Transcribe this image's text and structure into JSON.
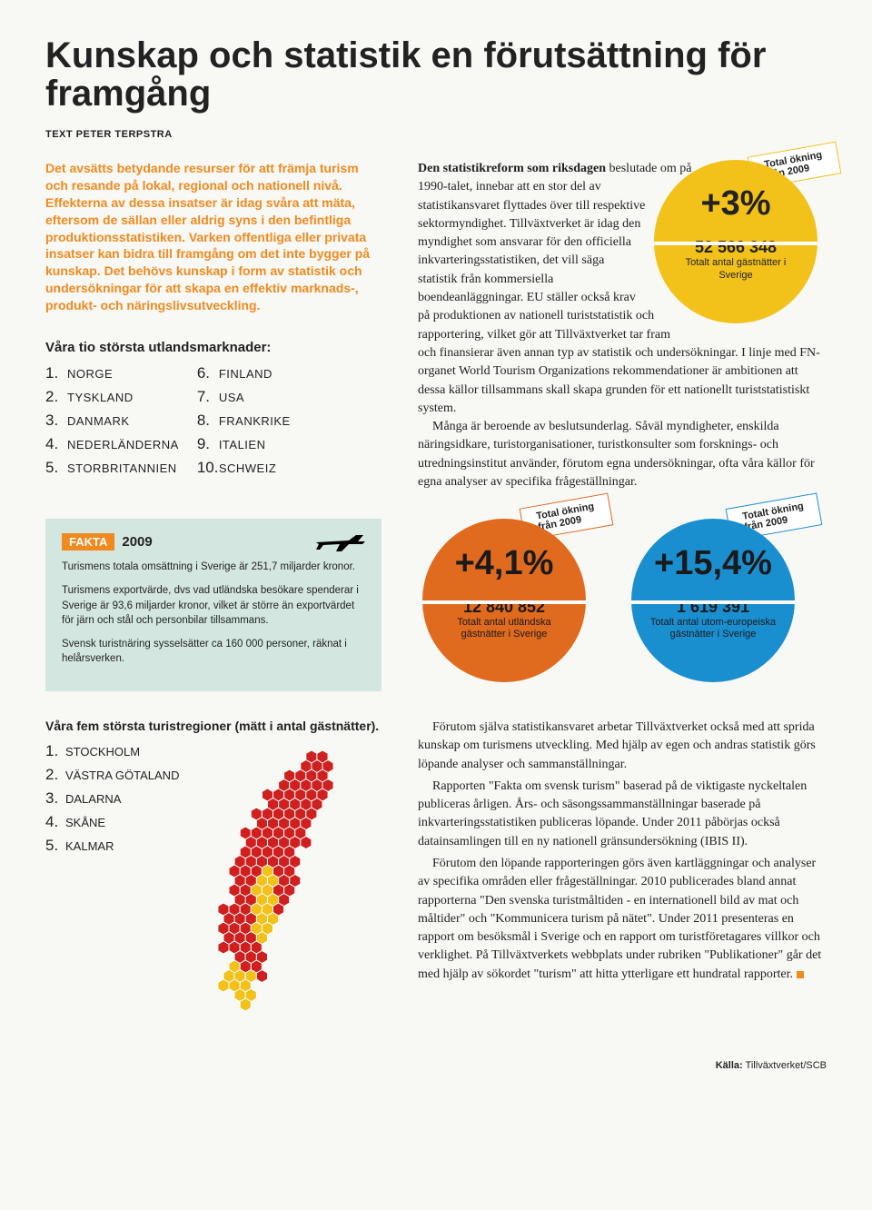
{
  "title": "Kunskap och statistik en förutsättning för framgång",
  "byline": "TEXT PETER TERPSTRA",
  "intro": "Det avsätts betydande resurser för att främja turism och resande på lokal, regional och nationell nivå. Effekterna av dessa insatser är idag svåra att mäta, eftersom de sällan eller aldrig syns i den befintliga produktionsstatistiken. Varken offentliga eller privata insatser kan bidra till framgång om det inte bygger på kunskap. Det behövs kunskap i form av statistik och undersökningar för att skapa en effektiv marknads-, produkt- och näringslivsutveckling.",
  "markets": {
    "title": "Våra tio största utlandsmarknader:",
    "items": [
      "NORGE",
      "TYSKLAND",
      "DANMARK",
      "NEDERLÄNDERNA",
      "STORBRITANNIEN",
      "FINLAND",
      "USA",
      "FRANKRIKE",
      "ITALIEN",
      "SCHWEIZ"
    ]
  },
  "body1_lead": "Den statistikreform som riksdagen",
  "body1": " beslutade om på 1990-talet, innebar att en stor del av statistikansvaret flyttades över till respektive sektormyndighet. Tillväxtverket är idag den myndighet som ansvarar för den officiella inkvarteringsstatistiken, det vill säga statistik från kommersiella boendeanläggningar. EU ställer också krav på produktionen av nationell turiststatistik och rapportering, vilket gör att Tillväxtverket tar fram och finansierar även annan typ av statistik och undersökningar. I linje med FN-organet World Tourism Organizations rekommendationer är ambitionen att dessa källor tillsammans skall skapa grunden för ett nationellt turiststatistiskt system.",
  "body1b": "Många är beroende av beslutsunderlag. Såväl myndigheter, enskilda näringsidkare, turistorganisationer, turistkonsulter som forsknings- och utredningsinstitut använder, förutom egna undersökningar, ofta våra källor för egna analyser av specifika frågeställningar.",
  "tag_line1": "Total ökning",
  "tag_line2": "från 2009",
  "tag_line1b": "Totalt ökning",
  "circles": {
    "yellow": {
      "bg": "#f2c11a",
      "pct": "+3%",
      "num": "52 566 348",
      "sub": "Totalt antal gästnätter i Sverige"
    },
    "orange": {
      "bg": "#e06a1e",
      "pct": "+4,1%",
      "num": "12 840 852",
      "sub": "Totalt antal utländska gästnätter i Sverige"
    },
    "blue": {
      "bg": "#1a8fd0",
      "pct": "+15,4%",
      "num": "1 619 391",
      "sub": "Totalt antal utom-europeiska gästnätter i Sverige"
    }
  },
  "fakta": {
    "badge": "FAKTA",
    "year": "2009",
    "p1": "Turismens totala omsättning i Sverige är 251,7 miljarder kronor.",
    "p2": "Turismens exportvärde, dvs vad utländska besökare spenderar i Sverige är 93,6 miljarder kronor, vilket är större än exportvärdet för järn och stål och personbilar tillsammans.",
    "p3": "Svensk turistnäring sysselsätter ca 160 000 personer, räknat i helårsverken."
  },
  "regions": {
    "title": "Våra fem största turistregioner (mätt i antal gästnätter).",
    "items": [
      "STOCKHOLM",
      "VÄSTRA GÖTALAND",
      "DALARNA",
      "SKÅNE",
      "KALMAR"
    ]
  },
  "body2a": "Förutom själva statistikansvaret arbetar Tillväxtverket också med att sprida kunskap om turismens utveckling. Med hjälp av egen och andras statistik görs löpande analyser och sammanställningar.",
  "body2b": "Rapporten \"Fakta om svensk turism\" baserad på de viktigaste nyckeltalen publiceras årligen. Års- och säsongssammanställningar baserade på inkvarteringsstatistiken publiceras löpande. Under 2011 påbörjas också datainsamlingen till en ny nationell gränsundersökning (IBIS II).",
  "body2c": "Förutom den löpande rapporteringen görs även kartläggningar och analyser av specifika områden eller frågeställningar. 2010 publicerades bland annat rapporterna \"Den svenska turistmåltiden - en internationell bild av mat och måltider\" och \"Kommunicera turism på nätet\". Under 2011 presenteras en rapport om besöksmål i Sverige och en rapport om turistföretagares villkor och verklighet. På Tillväxtverkets webbplats under rubriken \"Publikationer\" går det med hjälp av sökordet \"turism\" att hitta ytterligare ett hundratal rapporter.",
  "source_label": "Källa:",
  "source_value": " Tillväxtverket/SCB",
  "map_colors": {
    "red": "#d01f1f",
    "yellow": "#f2c11a"
  }
}
